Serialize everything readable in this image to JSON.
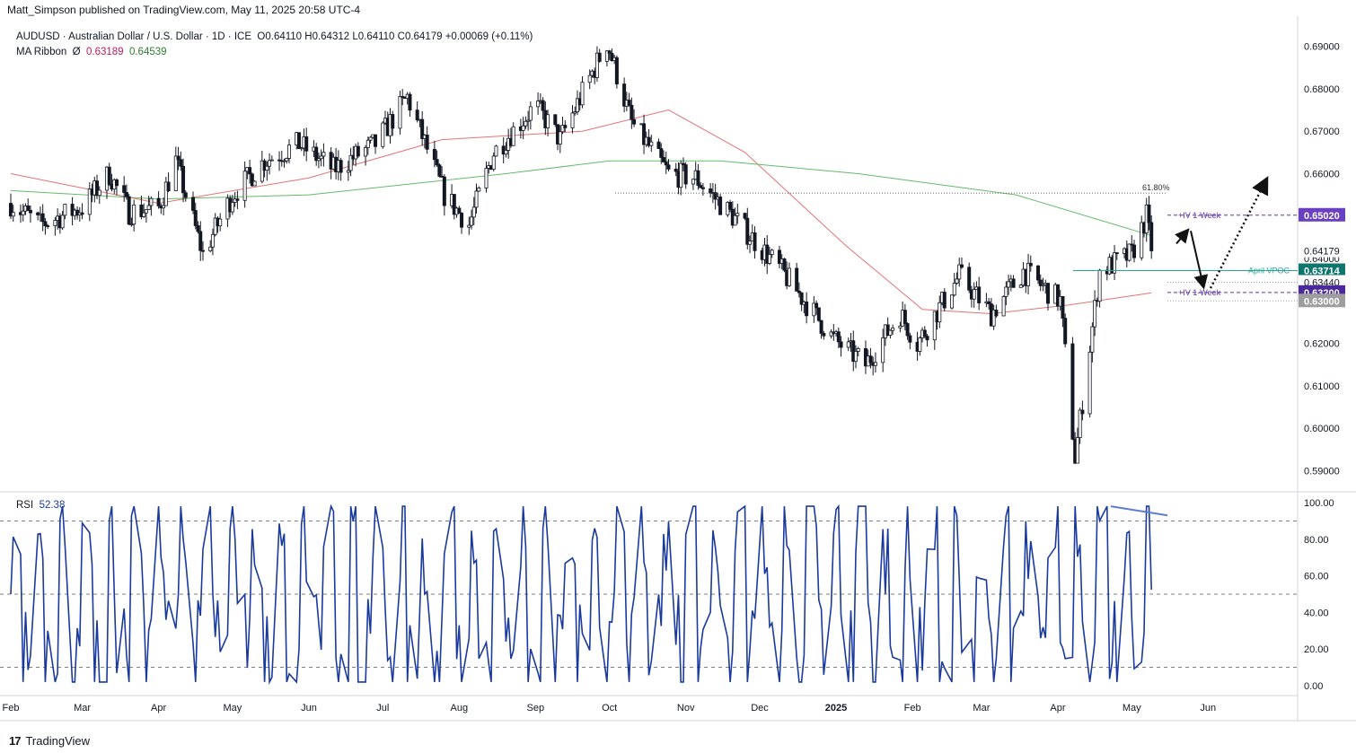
{
  "published_note": "Matt_Simpson published on TradingView.com, May 11, 2025 20:58 UTC-4",
  "legend": {
    "symbol_line": "AUDUSD · Australian Dollar / U.S. Dollar · 1D · ICE",
    "ohlc": "O0.64110  H0.64312  L0.64110  C0.64179  +0.00069 (+0.11%)",
    "ma_label": "MA Ribbon",
    "ma_icon": "Ø",
    "ma_fast": "0.63189",
    "ma_slow": "0.64539",
    "rsi_label": "RSI",
    "rsi_value": "52.38"
  },
  "brand": {
    "logo": "17",
    "name": "TradingView"
  },
  "colors": {
    "up": "#131722",
    "down": "#131722",
    "ma_fast": "#e57373",
    "ma_slow": "#66bb6a",
    "rsi": "#1a3a9e",
    "divergence": "#5b7bd5",
    "iv": "#5e35b1",
    "vpoc": "#26a69a"
  },
  "chart_data": [
    {
      "type": "candlestick",
      "title": "AUDUSD · Australian Dollar / U.S. Dollar · 1D · ICE",
      "ylim": [
        0.585,
        0.695
      ],
      "x_tick_labels": [
        "Feb",
        "Mar",
        "Apr",
        "May",
        "Jun",
        "Jul",
        "Aug",
        "Sep",
        "Oct",
        "Nov",
        "Dec",
        "2025",
        "Feb",
        "Mar",
        "Apr",
        "May",
        "Jun"
      ],
      "y_tick_labels": [
        "0.69000",
        "0.68000",
        "0.67000",
        "0.66000",
        "0.65000",
        "0.64000",
        "0.63000",
        "0.62000",
        "0.61000",
        "0.60000",
        "0.59000"
      ],
      "price_path": [
        [
          "2024-02-01",
          0.653
        ],
        [
          "2024-02-13",
          0.648
        ],
        [
          "2024-03-01",
          0.652
        ],
        [
          "2024-03-12",
          0.66
        ],
        [
          "2024-03-20",
          0.651
        ],
        [
          "2024-04-01",
          0.652
        ],
        [
          "2024-04-08",
          0.663
        ],
        [
          "2024-04-19",
          0.641
        ],
        [
          "2024-05-01",
          0.655
        ],
        [
          "2024-05-14",
          0.663
        ],
        [
          "2024-05-28",
          0.667
        ],
        [
          "2024-06-11",
          0.661
        ],
        [
          "2024-06-28",
          0.667
        ],
        [
          "2024-07-11",
          0.678
        ],
        [
          "2024-07-26",
          0.655
        ],
        [
          "2024-08-05",
          0.648
        ],
        [
          "2024-08-15",
          0.665
        ],
        [
          "2024-09-01",
          0.676
        ],
        [
          "2024-09-11",
          0.668
        ],
        [
          "2024-09-30",
          0.691
        ],
        [
          "2024-10-10",
          0.672
        ],
        [
          "2024-10-25",
          0.66
        ],
        [
          "2024-11-05",
          0.659
        ],
        [
          "2024-11-20",
          0.65
        ],
        [
          "2024-12-10",
          0.637
        ],
        [
          "2024-12-31",
          0.621
        ],
        [
          "2025-01-13",
          0.615
        ],
        [
          "2025-01-27",
          0.627
        ],
        [
          "2025-02-03",
          0.62
        ],
        [
          "2025-02-20",
          0.636
        ],
        [
          "2025-03-05",
          0.627
        ],
        [
          "2025-03-18",
          0.637
        ],
        [
          "2025-04-02",
          0.63
        ],
        [
          "2025-04-08",
          0.593
        ],
        [
          "2025-04-18",
          0.637
        ],
        [
          "2025-05-01",
          0.641
        ],
        [
          "2025-05-07",
          0.65
        ],
        [
          "2025-05-09",
          0.642
        ]
      ],
      "close": 0.64179,
      "ma_ribbon": {
        "fast": [
          [
            "2024-02-01",
            0.66
          ],
          [
            "2024-04-01",
            0.653
          ],
          [
            "2024-06-01",
            0.659
          ],
          [
            "2024-07-25",
            0.668
          ],
          [
            "2024-09-20",
            0.67
          ],
          [
            "2024-10-25",
            0.675
          ],
          [
            "2024-11-25",
            0.665
          ],
          [
            "2025-01-05",
            0.643
          ],
          [
            "2025-02-05",
            0.628
          ],
          [
            "2025-03-05",
            0.627
          ],
          [
            "2025-04-05",
            0.629
          ],
          [
            "2025-05-09",
            0.6319
          ]
        ],
        "slow": [
          [
            "2024-02-01",
            0.656
          ],
          [
            "2024-04-01",
            0.654
          ],
          [
            "2024-06-01",
            0.655
          ],
          [
            "2024-08-20",
            0.66
          ],
          [
            "2024-10-01",
            0.663
          ],
          [
            "2024-11-15",
            0.663
          ],
          [
            "2025-01-10",
            0.66
          ],
          [
            "2025-03-15",
            0.655
          ],
          [
            "2025-05-09",
            0.6454
          ]
        ]
      },
      "annotations": [
        {
          "text": "61.80%",
          "price": 0.6554
        },
        {
          "text": "+IV 1-Week",
          "price": 0.6502
        },
        {
          "text": "+IV 1-Week",
          "price": 0.632
        },
        {
          "text": "April VPOC",
          "price": 0.63714
        }
      ],
      "price_labels": [
        {
          "text": "0.65020",
          "price": 0.6502,
          "bg": "#6a3fc2"
        },
        {
          "text": "0.64179",
          "price": 0.64179,
          "bg": "#ffffff"
        },
        {
          "text": "0.63714",
          "price": 0.63714,
          "bg": "#0f766e"
        },
        {
          "text": "0.63440",
          "price": 0.6344,
          "bg": "#ffffff"
        },
        {
          "text": "0.63200",
          "price": 0.632,
          "bg": "#4a2a9b"
        },
        {
          "text": "0.63000",
          "price": 0.63,
          "bg": "#9e9e9e"
        }
      ]
    },
    {
      "type": "line",
      "title": "RSI 52.38",
      "ylim": [
        0,
        100
      ],
      "y_tick_labels": [
        "100.00",
        "80.00",
        "60.00",
        "40.00",
        "20.00",
        "0.00"
      ],
      "levels": [
        90,
        50,
        10
      ],
      "last": 52.38
    }
  ]
}
